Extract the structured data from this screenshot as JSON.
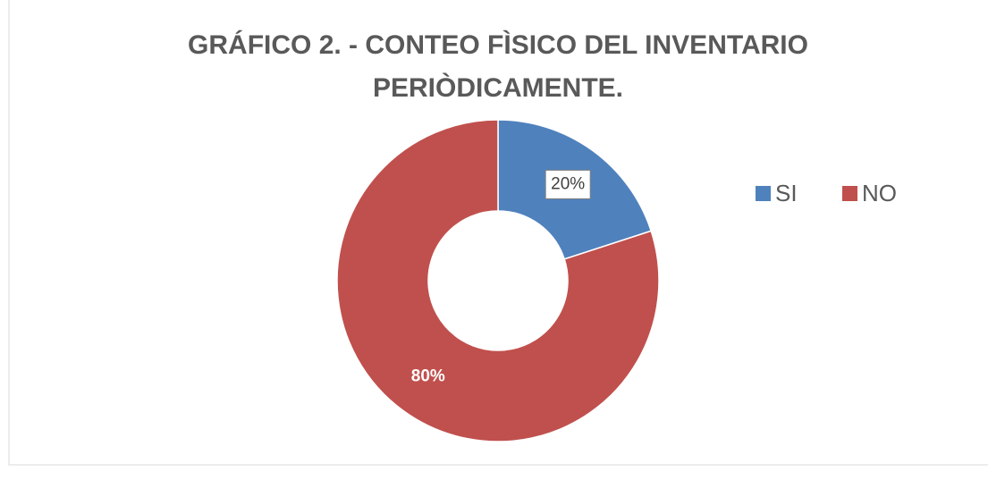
{
  "chart_data": {
    "type": "donut",
    "title": [
      "GRÁFICO 2. - CONTEO FÌSICO DEL INVENTARIO",
      "PERIÒDICAMENTE."
    ],
    "categories": [
      "SI",
      "NO"
    ],
    "values": [
      20,
      80
    ],
    "value_labels": [
      "20%",
      "80%"
    ],
    "colors": [
      "#4f81bd",
      "#c0504d"
    ],
    "legend": "right"
  }
}
